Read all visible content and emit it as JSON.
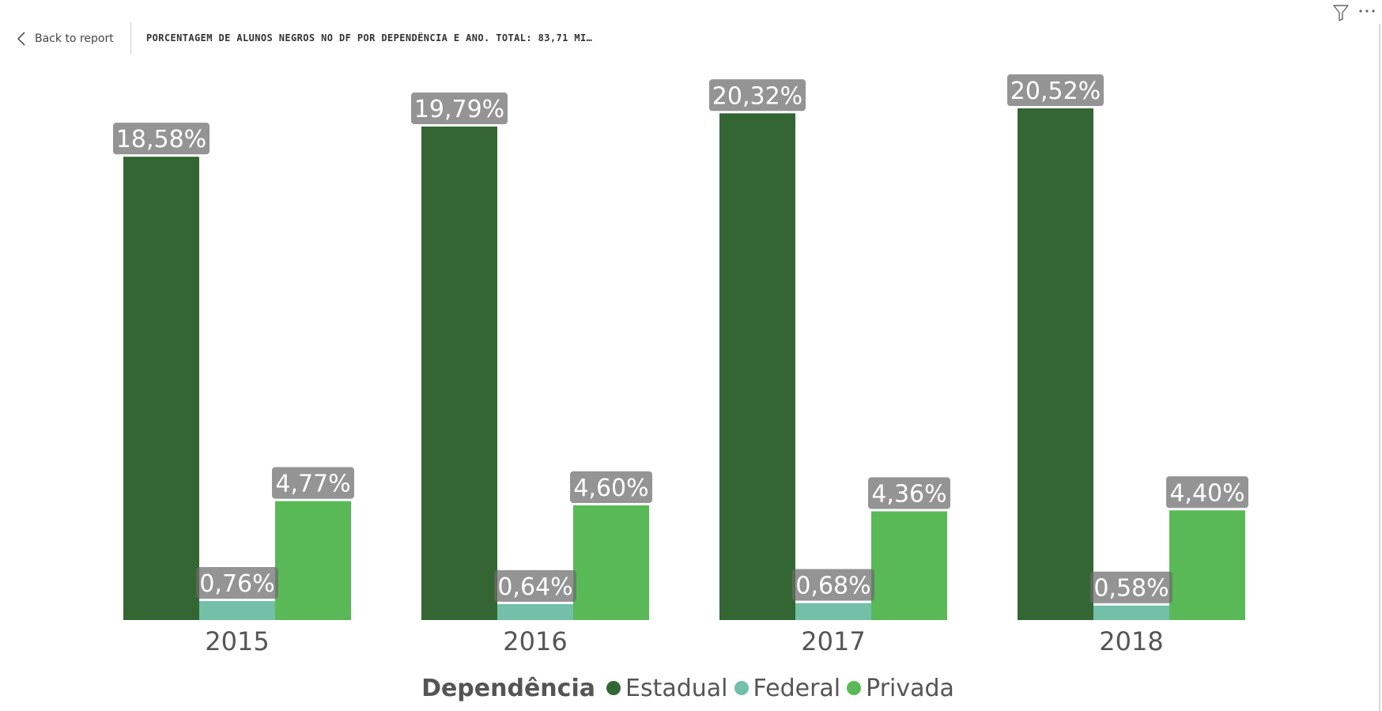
{
  "header": {
    "back_label": "Back to report",
    "title": "PORCENTAGEM DE ALUNOS NEGROS NO DF POR DEPENDÊNCIA E ANO. TOTAL: 83,71 MI…"
  },
  "icons": {
    "back": "chevron-left-icon",
    "filter": "filter-icon",
    "more": "more-options-icon"
  },
  "chart_data": {
    "type": "bar",
    "categories": [
      "2015",
      "2016",
      "2017",
      "2018"
    ],
    "series": [
      {
        "name": "Estadual",
        "color": "#336633",
        "values": [
          18.58,
          19.79,
          20.32,
          20.52
        ],
        "labels": [
          "18,58%",
          "19,79%",
          "20,32%",
          "20,52%"
        ]
      },
      {
        "name": "Federal",
        "color": "#73bfa8",
        "values": [
          0.76,
          0.64,
          0.68,
          0.58
        ],
        "labels": [
          "0,76%",
          "0,64%",
          "0,68%",
          "0,58%"
        ]
      },
      {
        "name": "Privada",
        "color": "#59b956",
        "values": [
          4.77,
          4.6,
          4.36,
          4.4
        ],
        "labels": [
          "4,77%",
          "4,60%",
          "4,36%",
          "4,40%"
        ]
      }
    ],
    "legend_title": "Dependência",
    "legend_position": "bottom-center",
    "ylim": [
      0,
      22
    ],
    "grid": false
  }
}
